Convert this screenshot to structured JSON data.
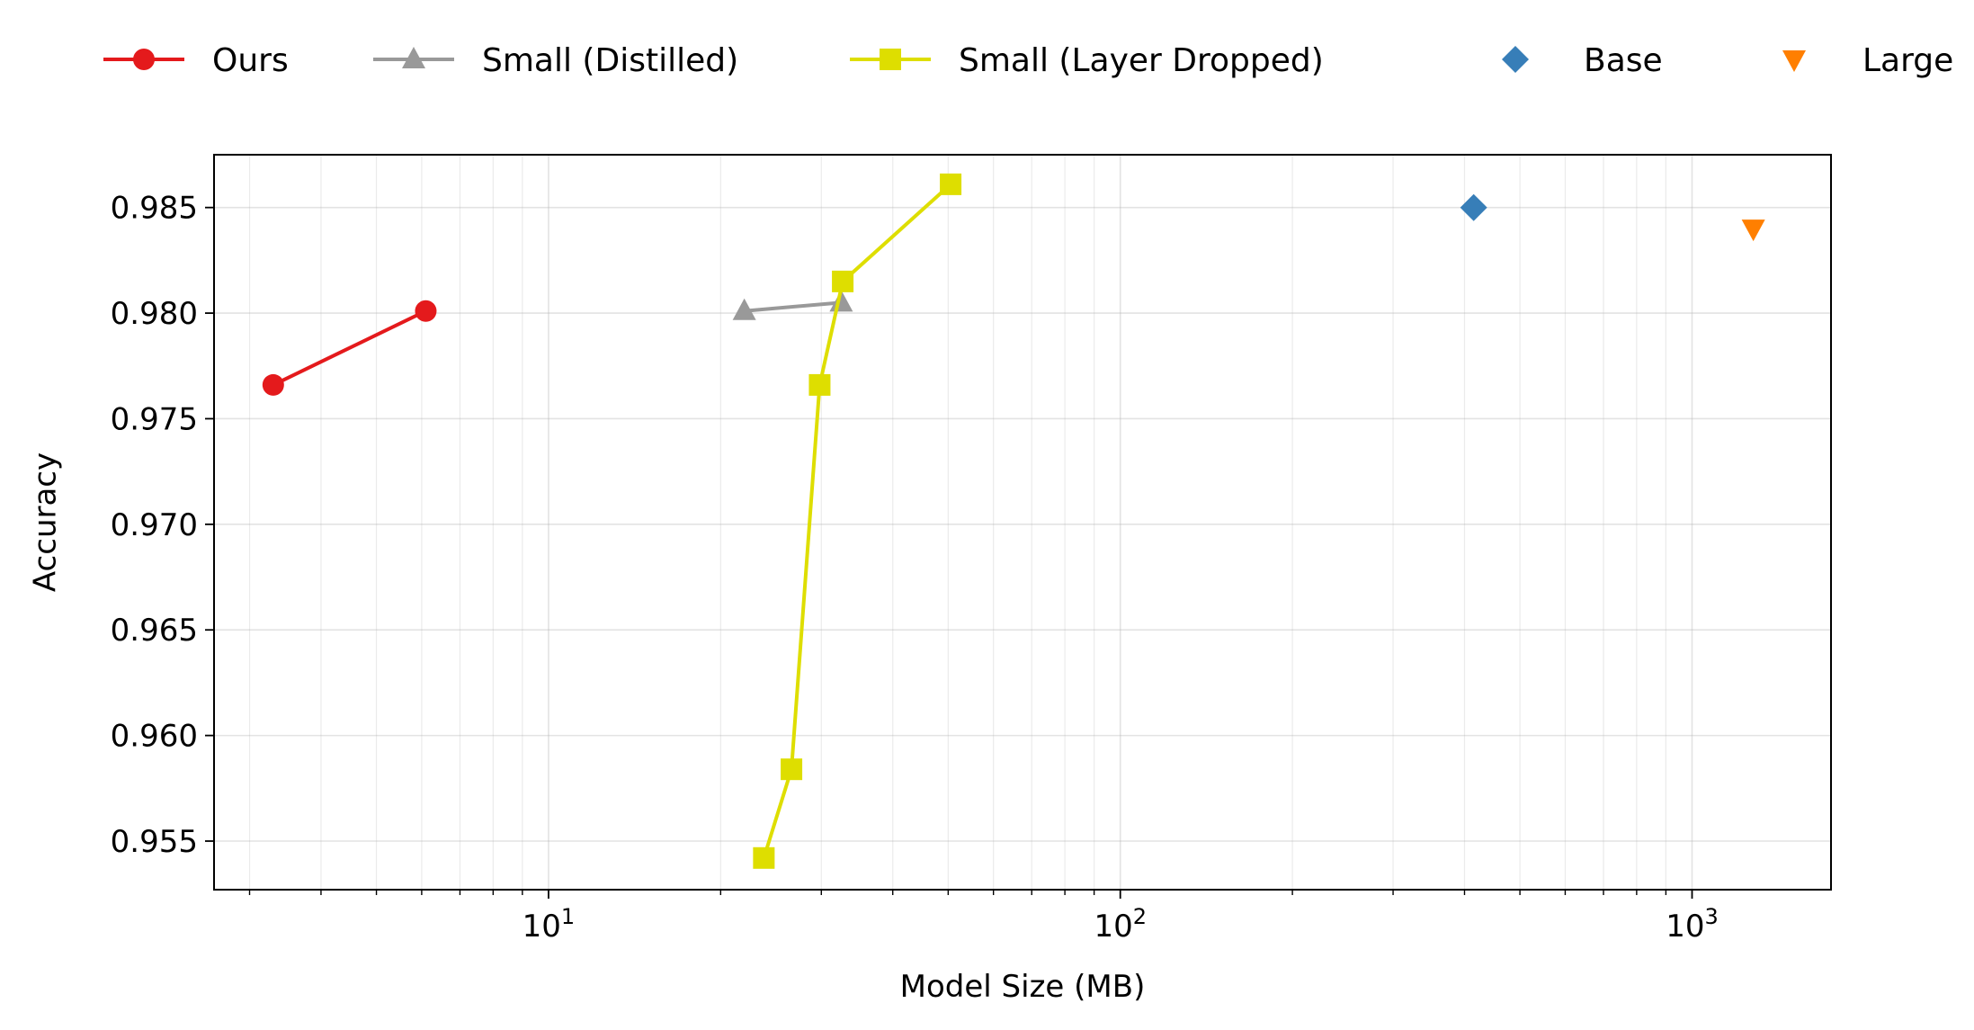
{
  "chart_data": {
    "type": "line",
    "title": "",
    "xlabel": "Model Size (MB)",
    "ylabel": "Accuracy",
    "xscale": "log",
    "xlim": [
      2.6,
      1750
    ],
    "ylim": [
      0.9527,
      0.9875
    ],
    "xticks": [
      {
        "value": 10,
        "base": "10",
        "exp": "1"
      },
      {
        "value": 100,
        "base": "10",
        "exp": "2"
      },
      {
        "value": 1000,
        "base": "10",
        "exp": "3"
      }
    ],
    "yticks": [
      {
        "value": 0.955,
        "label": "0.955"
      },
      {
        "value": 0.96,
        "label": "0.960"
      },
      {
        "value": 0.965,
        "label": "0.965"
      },
      {
        "value": 0.97,
        "label": "0.970"
      },
      {
        "value": 0.975,
        "label": "0.975"
      },
      {
        "value": 0.98,
        "label": "0.980"
      },
      {
        "value": 0.985,
        "label": "0.985"
      }
    ],
    "grid": true,
    "legend_position": "top",
    "series": [
      {
        "name": "Ours",
        "color": "#e41a1c",
        "marker": "circle",
        "line": true,
        "x": [
          3.3,
          6.1
        ],
        "y": [
          0.9766,
          0.9801
        ]
      },
      {
        "name": "Small (Distilled)",
        "color": "#999999",
        "marker": "triangle-up",
        "line": true,
        "x": [
          22.0,
          32.5
        ],
        "y": [
          0.9801,
          0.9805
        ]
      },
      {
        "name": "Small (Layer Dropped)",
        "color": "#dede00",
        "marker": "square",
        "line": true,
        "x": [
          23.8,
          26.6,
          29.8,
          32.7,
          50.5
        ],
        "y": [
          0.9542,
          0.9584,
          0.9766,
          0.9815,
          0.9861
        ]
      },
      {
        "name": "Base",
        "color": "#377eb8",
        "marker": "diamond",
        "line": false,
        "x": [
          415
        ],
        "y": [
          0.985
        ]
      },
      {
        "name": "Large",
        "color": "#ff7f00",
        "marker": "triangle-down",
        "line": false,
        "x": [
          1280
        ],
        "y": [
          0.984
        ]
      }
    ]
  }
}
